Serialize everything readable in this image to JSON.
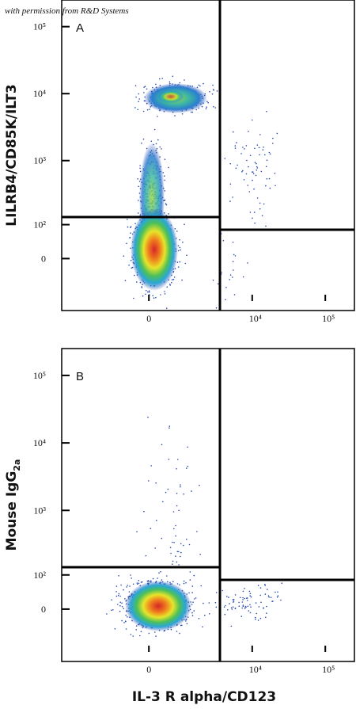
{
  "watermark": "with permission from R&D Systems",
  "chart_data": [
    {
      "type": "density",
      "panel_label": "A",
      "y_label": "LILRB4/CD85K/ILT3",
      "xlim": [
        -6000,
        250000
      ],
      "ylim": [
        -200,
        250000
      ],
      "xticks": [
        0,
        {
          "value": 10000,
          "label": "10⁴"
        },
        {
          "value": 100000,
          "label": "10⁵"
        }
      ],
      "yticks": [
        0,
        {
          "value": 100,
          "label": "10²"
        },
        {
          "value": 1000,
          "label": "10³"
        },
        {
          "value": 10000,
          "label": "10⁴"
        },
        {
          "value": 100000,
          "label": "10⁵"
        }
      ]
    },
    {
      "type": "density",
      "panel_label": "B",
      "y_label": {
        "text": "Mouse IgG",
        "subscript": "2a"
      },
      "x_label": "IL-3 R alpha/CD123",
      "xlim": [
        -6000,
        250000
      ],
      "ylim": [
        -200,
        250000
      ],
      "xticks": [
        0,
        {
          "value": 10000,
          "label": "10⁴"
        },
        {
          "value": 100000,
          "label": "10⁵"
        }
      ],
      "yticks": [
        0,
        {
          "value": 100,
          "label": "10²"
        },
        {
          "value": 1000,
          "label": "10³"
        },
        {
          "value": 10000,
          "label": "10⁴"
        },
        {
          "value": 100000,
          "label": "10⁵"
        }
      ]
    }
  ]
}
